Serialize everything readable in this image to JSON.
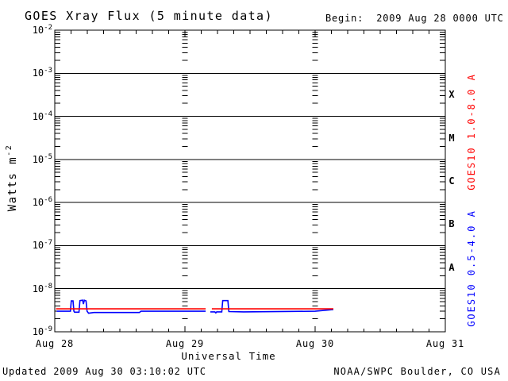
{
  "header": {
    "title": "GOES Xray Flux (5 minute data)",
    "begin_label": "Begin:  2009 Aug 28 0000 UTC"
  },
  "footer": {
    "updated": "Updated 2009 Aug 30 03:10:02 UTC",
    "source": "NOAA/SWPC Boulder, CO USA"
  },
  "colors": {
    "background": "#ffffff",
    "axis": "#000000",
    "long_channel": "#ff0000",
    "short_channel": "#0000ff"
  },
  "chart_data": {
    "type": "line",
    "title": "GOES Xray Flux (5 minute data)",
    "xlabel": "Universal Time",
    "ylabel": {
      "text": "Watts m",
      "sup": "-2"
    },
    "x_axis": {
      "start": "2009 Aug 28 0000 UTC",
      "span_days": 3,
      "tick_labels": [
        "Aug 28",
        "Aug 29",
        "Aug 30",
        "Aug 31"
      ],
      "minor_tick_hours": 3,
      "day_boundary_style": "dashed-log-tick-columns"
    },
    "y_axis": {
      "scale": "log",
      "min": 1e-09,
      "max": 0.01,
      "tick_exponents": [
        -2,
        -3,
        -4,
        -5,
        -6,
        -7,
        -8,
        -9
      ],
      "grid": "solid-line-per-decade"
    },
    "flare_classes": [
      {
        "label": "X",
        "band_exponents": [
          -4,
          -3
        ]
      },
      {
        "label": "M",
        "band_exponents": [
          -5,
          -4
        ]
      },
      {
        "label": "C",
        "band_exponents": [
          -6,
          -5
        ]
      },
      {
        "label": "B",
        "band_exponents": [
          -7,
          -6
        ]
      },
      {
        "label": "A",
        "band_exponents": [
          -8,
          -7
        ]
      }
    ],
    "series": [
      {
        "name": "GOES10 0.5-4.0 A",
        "color": "#0000ff",
        "x_unit": "days_since_begin",
        "y_unit": "W/m^2",
        "segments": [
          [
            [
              0.015,
              3e-09
            ],
            [
              0.12,
              3e-09
            ],
            [
              0.127,
              5.2e-09
            ],
            [
              0.14,
              5.2e-09
            ],
            [
              0.147,
              3e-09
            ],
            [
              0.152,
              2.85e-09
            ],
            [
              0.186,
              2.85e-09
            ],
            [
              0.193,
              5.3e-09
            ],
            [
              0.214,
              5.4e-09
            ],
            [
              0.22,
              4.4e-09
            ],
            [
              0.227,
              5.4e-09
            ],
            [
              0.24,
              5.2e-09
            ],
            [
              0.248,
              3e-09
            ],
            [
              0.26,
              2.7e-09
            ],
            [
              0.3,
              2.8e-09
            ],
            [
              0.65,
              2.8e-09
            ],
            [
              0.662,
              3e-09
            ],
            [
              1.159,
              3e-09
            ]
          ],
          [
            [
              1.195,
              2.9e-09
            ],
            [
              1.23,
              2.9e-09
            ],
            [
              1.237,
              2.75e-09
            ],
            [
              1.244,
              2.9e-09
            ],
            [
              1.283,
              2.9e-09
            ],
            [
              1.29,
              5.3e-09
            ],
            [
              1.33,
              5.3e-09
            ],
            [
              1.337,
              2.95e-09
            ],
            [
              1.45,
              2.9e-09
            ],
            [
              2.0,
              3e-09
            ],
            [
              2.14,
              3.3e-09
            ]
          ]
        ]
      },
      {
        "name": "GOES10 1.0-8.0 A",
        "color": "#ff0000",
        "x_unit": "days_since_begin",
        "y_unit": "W/m^2",
        "segments": [
          [
            [
              0.01,
              3.4e-09
            ],
            [
              1.159,
              3.4e-09
            ]
          ],
          [
            [
              1.207,
              3.4e-09
            ],
            [
              2.14,
              3.4e-09
            ]
          ]
        ]
      }
    ]
  }
}
